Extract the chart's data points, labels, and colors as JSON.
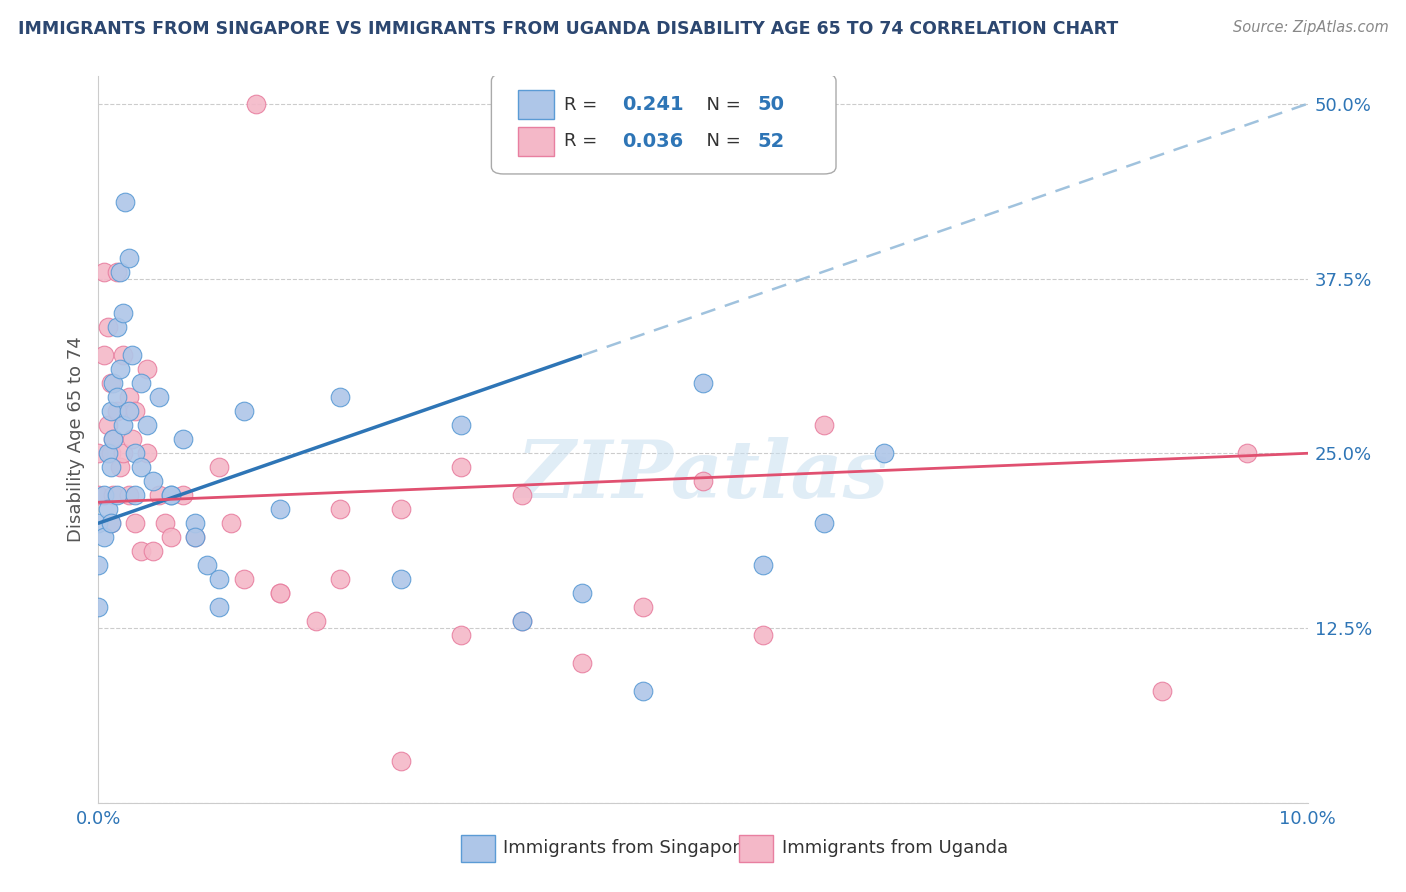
{
  "title": "IMMIGRANTS FROM SINGAPORE VS IMMIGRANTS FROM UGANDA DISABILITY AGE 65 TO 74 CORRELATION CHART",
  "source": "Source: ZipAtlas.com",
  "xlabel_bottom": "Immigrants from Singapore",
  "xlabel_bottom2": "Immigrants from Uganda",
  "ylabel": "Disability Age 65 to 74",
  "xlim": [
    0.0,
    10.0
  ],
  "ylim": [
    0.0,
    52.0
  ],
  "ytick_positions": [
    0,
    12.5,
    25.0,
    37.5,
    50.0
  ],
  "ytick_labels": [
    "",
    "12.5%",
    "25.0%",
    "37.5%",
    "50.0%"
  ],
  "xtick_positions": [
    0,
    2,
    4,
    6,
    8,
    10
  ],
  "xtick_labels": [
    "0.0%",
    "",
    "",
    "",
    "",
    "10.0%"
  ],
  "legend_R1": "0.241",
  "legend_N1": "50",
  "legend_R2": "0.036",
  "legend_N2": "52",
  "singapore_color": "#aec6e8",
  "singapore_edge": "#5b9bd5",
  "uganda_color": "#f4b8c8",
  "uganda_edge": "#e87fa0",
  "trend_singapore_color": "#2e75b6",
  "trend_uganda_color": "#e05070",
  "trend_dashed_color": "#90b8d8",
  "watermark": "ZIPatlas",
  "sg_x": [
    0.0,
    0.0,
    0.0,
    0.05,
    0.05,
    0.08,
    0.08,
    0.1,
    0.1,
    0.1,
    0.12,
    0.12,
    0.15,
    0.15,
    0.15,
    0.18,
    0.18,
    0.2,
    0.2,
    0.22,
    0.25,
    0.25,
    0.28,
    0.3,
    0.3,
    0.35,
    0.35,
    0.4,
    0.45,
    0.5,
    0.6,
    0.7,
    0.8,
    0.9,
    1.0,
    1.2,
    1.5,
    2.0,
    2.5,
    3.0,
    3.5,
    4.0,
    4.5,
    5.0,
    5.5,
    6.0,
    6.5,
    0.6,
    0.8,
    1.0
  ],
  "sg_y": [
    20.0,
    17.0,
    14.0,
    22.0,
    19.0,
    25.0,
    21.0,
    28.0,
    24.0,
    20.0,
    30.0,
    26.0,
    34.0,
    29.0,
    22.0,
    38.0,
    31.0,
    35.0,
    27.0,
    43.0,
    39.0,
    28.0,
    32.0,
    25.0,
    22.0,
    30.0,
    24.0,
    27.0,
    23.0,
    29.0,
    22.0,
    26.0,
    20.0,
    17.0,
    14.0,
    28.0,
    21.0,
    29.0,
    16.0,
    27.0,
    13.0,
    15.0,
    8.0,
    30.0,
    17.0,
    20.0,
    25.0,
    22.0,
    19.0,
    16.0
  ],
  "ug_x": [
    0.0,
    0.0,
    0.05,
    0.05,
    0.08,
    0.08,
    0.1,
    0.1,
    0.1,
    0.12,
    0.12,
    0.15,
    0.15,
    0.18,
    0.2,
    0.2,
    0.25,
    0.25,
    0.28,
    0.3,
    0.3,
    0.35,
    0.4,
    0.4,
    0.45,
    0.5,
    0.55,
    0.6,
    0.7,
    0.8,
    1.0,
    1.1,
    1.2,
    1.5,
    1.8,
    2.0,
    2.5,
    3.0,
    3.5,
    4.0,
    4.5,
    5.0,
    5.5,
    6.0,
    1.3,
    1.5,
    2.0,
    2.5,
    3.0,
    3.5,
    8.8,
    9.5
  ],
  "ug_y": [
    25.0,
    22.0,
    38.0,
    32.0,
    27.0,
    34.0,
    25.0,
    20.0,
    30.0,
    26.0,
    22.0,
    38.0,
    28.0,
    24.0,
    32.0,
    25.0,
    29.0,
    22.0,
    26.0,
    20.0,
    28.0,
    18.0,
    31.0,
    25.0,
    18.0,
    22.0,
    20.0,
    19.0,
    22.0,
    19.0,
    24.0,
    20.0,
    16.0,
    15.0,
    13.0,
    16.0,
    21.0,
    24.0,
    22.0,
    10.0,
    14.0,
    23.0,
    12.0,
    27.0,
    50.0,
    15.0,
    21.0,
    3.0,
    12.0,
    13.0,
    8.0,
    25.0
  ]
}
